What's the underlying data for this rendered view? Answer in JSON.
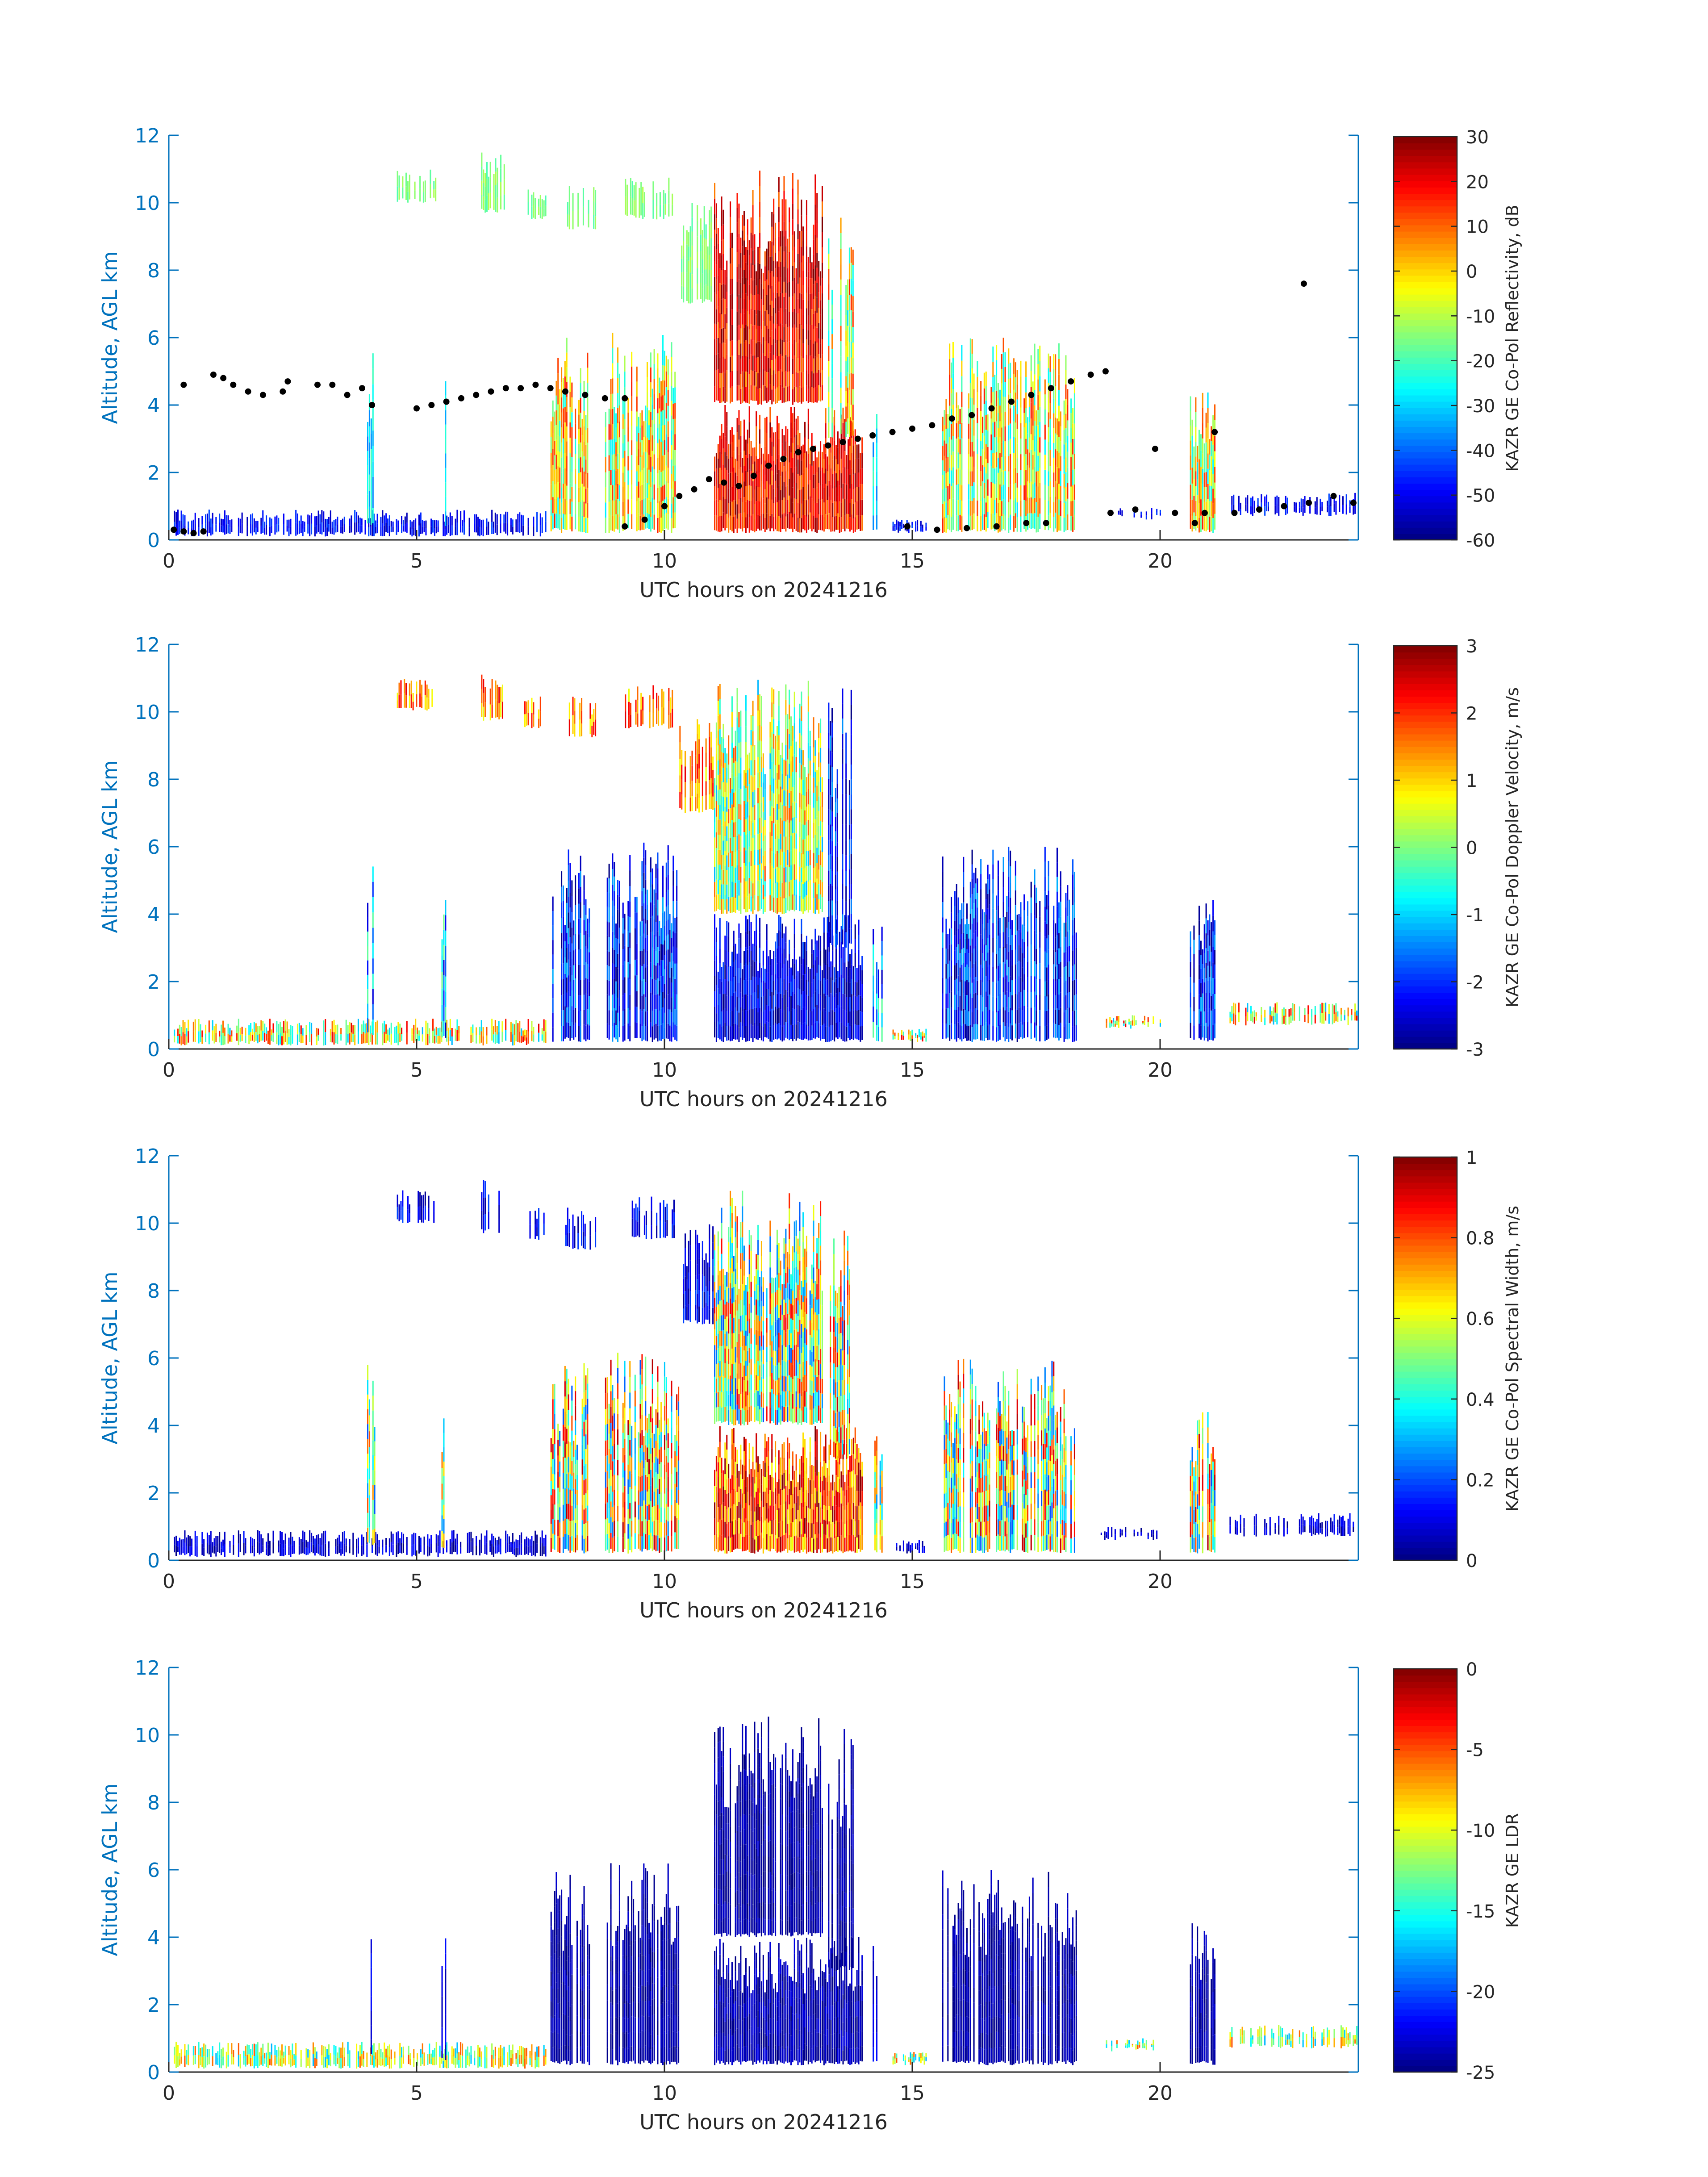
{
  "chart_data": [
    {
      "type": "heatmap",
      "panel": "reflectivity",
      "xlabel": "UTC hours on 20241216",
      "ylabel": "Altitude, AGL km",
      "xlim": [
        0,
        24
      ],
      "ylim": [
        0,
        12
      ],
      "xticks": [
        0,
        5,
        10,
        15,
        20
      ],
      "yticks": [
        0,
        2,
        4,
        6,
        8,
        10,
        12
      ],
      "colorbar": {
        "label": "KAZR GE Co-Pol Reflectivity, dB",
        "range": [
          -60,
          30
        ],
        "ticks": [
          -60,
          -50,
          -40,
          -30,
          -20,
          -10,
          0,
          10,
          20,
          30
        ],
        "colormap": "jet"
      },
      "overlay": {
        "type": "scatter",
        "color": "#000000",
        "points": [
          [
            0.1,
            0.3
          ],
          [
            0.3,
            0.25
          ],
          [
            0.5,
            0.2
          ],
          [
            0.7,
            0.25
          ],
          [
            0.3,
            4.6
          ],
          [
            0.9,
            4.9
          ],
          [
            1.1,
            4.8
          ],
          [
            1.3,
            4.6
          ],
          [
            1.6,
            4.4
          ],
          [
            1.9,
            4.3
          ],
          [
            2.3,
            4.4
          ],
          [
            2.4,
            4.7
          ],
          [
            3.0,
            4.6
          ],
          [
            3.3,
            4.6
          ],
          [
            3.6,
            4.3
          ],
          [
            3.9,
            4.5
          ],
          [
            4.1,
            4.0
          ],
          [
            5.0,
            3.9
          ],
          [
            5.3,
            4.0
          ],
          [
            5.6,
            4.1
          ],
          [
            5.9,
            4.2
          ],
          [
            6.2,
            4.3
          ],
          [
            6.5,
            4.4
          ],
          [
            6.8,
            4.5
          ],
          [
            7.1,
            4.5
          ],
          [
            7.4,
            4.6
          ],
          [
            7.7,
            4.5
          ],
          [
            8.0,
            4.4
          ],
          [
            8.4,
            4.3
          ],
          [
            8.8,
            4.2
          ],
          [
            9.2,
            4.2
          ],
          [
            9.2,
            0.4
          ],
          [
            9.6,
            0.6
          ],
          [
            10.0,
            1.0
          ],
          [
            10.3,
            1.3
          ],
          [
            10.6,
            1.5
          ],
          [
            10.9,
            1.8
          ],
          [
            11.2,
            1.7
          ],
          [
            11.5,
            1.6
          ],
          [
            11.8,
            1.9
          ],
          [
            12.1,
            2.2
          ],
          [
            12.4,
            2.4
          ],
          [
            12.7,
            2.6
          ],
          [
            13.0,
            2.7
          ],
          [
            13.3,
            2.8
          ],
          [
            13.6,
            2.9
          ],
          [
            13.9,
            3.0
          ],
          [
            14.2,
            3.1
          ],
          [
            14.6,
            3.2
          ],
          [
            15.0,
            3.3
          ],
          [
            15.4,
            3.4
          ],
          [
            15.8,
            3.6
          ],
          [
            16.2,
            3.7
          ],
          [
            16.6,
            3.9
          ],
          [
            17.0,
            4.1
          ],
          [
            17.4,
            4.3
          ],
          [
            17.8,
            4.5
          ],
          [
            18.2,
            4.7
          ],
          [
            18.6,
            4.9
          ],
          [
            18.9,
            5.0
          ],
          [
            14.9,
            0.4
          ],
          [
            15.5,
            0.3
          ],
          [
            16.1,
            0.35
          ],
          [
            16.7,
            0.4
          ],
          [
            17.3,
            0.5
          ],
          [
            17.7,
            0.5
          ],
          [
            19.0,
            0.8
          ],
          [
            19.5,
            0.9
          ],
          [
            19.9,
            2.7
          ],
          [
            20.3,
            0.8
          ],
          [
            20.7,
            0.5
          ],
          [
            20.9,
            0.8
          ],
          [
            21.1,
            3.2
          ],
          [
            21.5,
            0.8
          ],
          [
            22.0,
            0.9
          ],
          [
            22.5,
            1.0
          ],
          [
            23.0,
            1.1
          ],
          [
            22.9,
            7.6
          ],
          [
            23.5,
            1.3
          ],
          [
            23.9,
            1.1
          ]
        ]
      }
    },
    {
      "type": "heatmap",
      "panel": "doppler-velocity",
      "xlabel": "UTC hours on 20241216",
      "ylabel": "Altitude, AGL km",
      "xlim": [
        0,
        24
      ],
      "ylim": [
        0,
        12
      ],
      "xticks": [
        0,
        5,
        10,
        15,
        20
      ],
      "yticks": [
        0,
        2,
        4,
        6,
        8,
        10,
        12
      ],
      "colorbar": {
        "label": "KAZR GE Co-Pol Doppler Velocity, m/s",
        "range": [
          -3,
          3
        ],
        "ticks": [
          -3,
          -2,
          -1,
          0,
          1,
          2,
          3
        ],
        "colormap": "jet"
      }
    },
    {
      "type": "heatmap",
      "panel": "spectral-width",
      "xlabel": "UTC hours on 20241216",
      "ylabel": "Altitude, AGL km",
      "xlim": [
        0,
        24
      ],
      "ylim": [
        0,
        12
      ],
      "xticks": [
        0,
        5,
        10,
        15,
        20
      ],
      "yticks": [
        0,
        2,
        4,
        6,
        8,
        10,
        12
      ],
      "colorbar": {
        "label": "KAZR GE Co-Pol Spectral Width, m/s",
        "range": [
          0,
          1
        ],
        "ticks": [
          0,
          0.2,
          0.4,
          0.6,
          0.8,
          1
        ],
        "colormap": "jet"
      }
    },
    {
      "type": "heatmap",
      "panel": "ldr",
      "xlabel": "UTC hours on 20241216",
      "ylabel": "Altitude, AGL km",
      "xlim": [
        0,
        24
      ],
      "ylim": [
        0,
        12
      ],
      "xticks": [
        0,
        5,
        10,
        15,
        20
      ],
      "yticks": [
        0,
        2,
        4,
        6,
        8,
        10,
        12
      ],
      "colorbar": {
        "label": "KAZR GE LDR",
        "range": [
          -25,
          0
        ],
        "ticks": [
          -25,
          -20,
          -15,
          -10,
          -5,
          0
        ],
        "colormap": "jet"
      }
    }
  ],
  "colors": {
    "axis": "#0072BD",
    "text": "#262626",
    "overlay": "#000000"
  }
}
